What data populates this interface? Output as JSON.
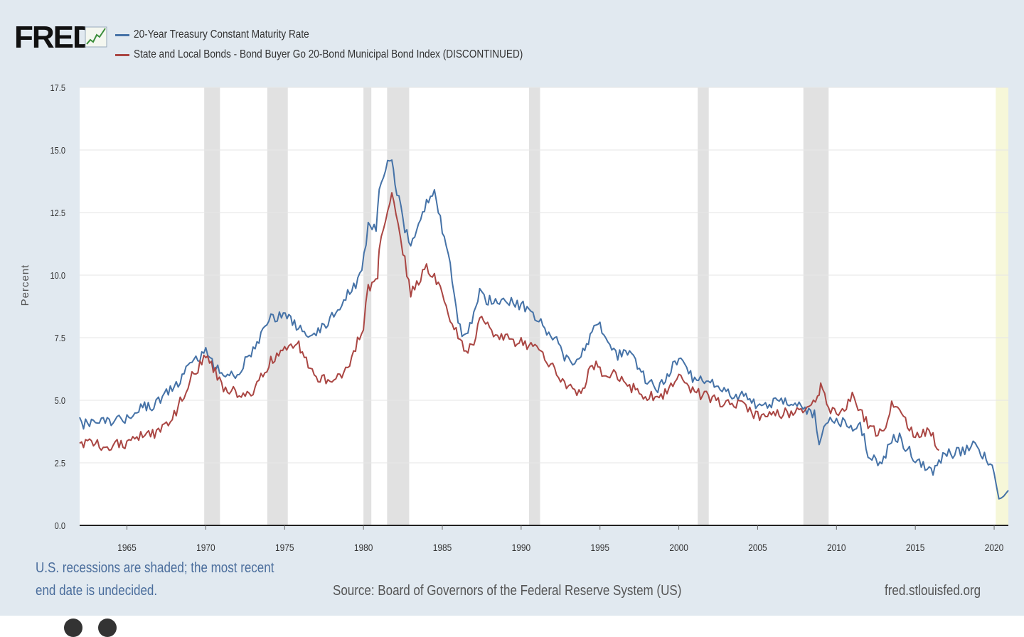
{
  "header": {
    "logo_text": "FRED",
    "logo_icon": "fred-graph-icon"
  },
  "legend": [
    {
      "label": "20-Year Treasury Constant Maturity Rate",
      "color": "#4572a7"
    },
    {
      "label": "State and Local Bonds - Bond Buyer Go 20-Bond Municipal Bond Index (DISCONTINUED)",
      "color": "#aa4643"
    }
  ],
  "footer": {
    "recession_note_line1": "U.S. recessions are shaded; the most recent",
    "recession_note_line2": "end date is undecided.",
    "source": "Source: Board of Governors of the Federal Reserve System (US)",
    "site": "fred.stlouisfed.org"
  },
  "chart_data": {
    "type": "line",
    "ylabel": "Percent",
    "xlim": [
      1962,
      2020.9
    ],
    "ylim": [
      0,
      17.5
    ],
    "x_ticks": [
      "1965",
      "1970",
      "1975",
      "1980",
      "1985",
      "1990",
      "1995",
      "2000",
      "2005",
      "2010",
      "2015",
      "2020"
    ],
    "y_ticks": [
      "0.0",
      "2.5",
      "5.0",
      "7.5",
      "10.0",
      "12.5",
      "15.0",
      "17.5"
    ],
    "recessions": [
      [
        1969.9,
        1970.9
      ],
      [
        1973.9,
        1975.2
      ],
      [
        1980.0,
        1980.5
      ],
      [
        1981.5,
        1982.9
      ],
      [
        1990.5,
        1991.2
      ],
      [
        2001.2,
        2001.9
      ],
      [
        2007.9,
        2009.5
      ],
      [
        2020.1,
        2020.9
      ]
    ],
    "series": [
      {
        "name": "20-Year Treasury Constant Maturity Rate",
        "color": "#4572a7",
        "x": [
          1962.0,
          1963.0,
          1964.0,
          1965.0,
          1966.0,
          1966.7,
          1967.0,
          1968.0,
          1969.0,
          1970.0,
          1970.4,
          1971.0,
          1972.0,
          1973.0,
          1974.0,
          1974.8,
          1975.5,
          1976.0,
          1977.0,
          1978.0,
          1979.0,
          1979.9,
          1980.3,
          1980.8,
          1981.0,
          1981.8,
          1982.0,
          1982.5,
          1983.0,
          1983.5,
          1984.0,
          1984.5,
          1985.0,
          1985.5,
          1986.0,
          1986.5,
          1987.0,
          1987.5,
          1987.8,
          1988.0,
          1989.0,
          1990.0,
          1990.5,
          1991.0,
          1992.0,
          1993.0,
          1993.8,
          1994.5,
          1995.0,
          1996.0,
          1997.0,
          1998.0,
          1998.8,
          1999.5,
          2000.0,
          2001.0,
          2002.0,
          2003.0,
          2004.0,
          2005.0,
          2006.0,
          2007.0,
          2008.0,
          2008.6,
          2008.9,
          2009.2,
          2010.0,
          2010.8,
          2011.5,
          2012.0,
          2012.5,
          2013.0,
          2013.5,
          2014.0,
          2015.0,
          2016.0,
          2016.5,
          2017.0,
          2018.0,
          2018.8,
          2019.5,
          2020.0,
          2020.3,
          2020.6,
          2020.9
        ],
        "y": [
          4.1,
          4.0,
          4.2,
          4.3,
          4.8,
          4.6,
          5.0,
          5.5,
          6.4,
          7.0,
          6.5,
          6.0,
          6.1,
          7.0,
          8.3,
          8.4,
          8.1,
          7.8,
          7.6,
          8.4,
          9.2,
          10.0,
          12.1,
          11.8,
          13.5,
          14.8,
          13.8,
          12.2,
          11.0,
          12.0,
          12.9,
          13.5,
          11.8,
          10.5,
          8.0,
          7.5,
          8.5,
          9.5,
          8.8,
          9.0,
          9.0,
          8.8,
          8.6,
          8.2,
          7.6,
          6.5,
          6.8,
          7.7,
          8.0,
          6.8,
          6.9,
          5.7,
          5.5,
          6.3,
          6.7,
          5.8,
          5.8,
          5.3,
          5.2,
          4.8,
          4.9,
          5.0,
          4.6,
          4.5,
          3.2,
          4.0,
          4.3,
          3.9,
          4.0,
          2.9,
          2.5,
          2.6,
          3.5,
          3.5,
          2.6,
          2.1,
          2.5,
          2.9,
          2.9,
          3.2,
          2.7,
          2.3,
          1.2,
          1.2,
          1.4
        ]
      },
      {
        "name": "State and Local Bonds - Bond Buyer Go 20-Bond Municipal Bond Index (DISCONTINUED)",
        "color": "#aa4643",
        "x": [
          1962.0,
          1963.0,
          1964.0,
          1965.0,
          1966.0,
          1967.0,
          1968.0,
          1969.0,
          1970.0,
          1970.6,
          1971.0,
          1972.0,
          1973.0,
          1974.0,
          1975.0,
          1975.8,
          1976.0,
          1977.0,
          1978.0,
          1979.0,
          1980.0,
          1980.3,
          1980.9,
          1981.0,
          1981.8,
          1982.2,
          1982.5,
          1983.0,
          1984.0,
          1984.5,
          1985.0,
          1986.0,
          1986.5,
          1987.0,
          1987.5,
          1988.0,
          1989.0,
          1990.0,
          1991.0,
          1992.0,
          1993.0,
          1993.8,
          1994.5,
          1995.0,
          1996.0,
          1997.0,
          1998.0,
          1999.0,
          2000.0,
          2001.0,
          2002.0,
          2003.0,
          2004.0,
          2005.0,
          2006.0,
          2007.0,
          2008.0,
          2008.8,
          2009.0,
          2009.5,
          2010.0,
          2010.5,
          2011.0,
          2012.0,
          2012.5,
          2013.0,
          2013.5,
          2014.0,
          2015.0,
          2016.0,
          2016.5
        ],
        "y": [
          3.3,
          3.2,
          3.2,
          3.3,
          3.7,
          3.7,
          4.4,
          5.8,
          6.8,
          6.2,
          5.5,
          5.3,
          5.2,
          6.5,
          7.0,
          7.4,
          7.0,
          5.8,
          5.8,
          6.3,
          8.0,
          9.5,
          10.0,
          11.0,
          13.3,
          12.0,
          11.0,
          9.2,
          10.3,
          10.0,
          9.2,
          7.5,
          7.0,
          7.4,
          8.3,
          7.8,
          7.5,
          7.3,
          7.0,
          6.4,
          5.5,
          5.3,
          6.5,
          6.2,
          6.0,
          5.5,
          5.1,
          5.2,
          6.0,
          5.3,
          5.1,
          4.8,
          4.8,
          4.4,
          4.4,
          4.5,
          4.6,
          5.0,
          5.8,
          4.6,
          4.4,
          4.6,
          5.1,
          4.1,
          3.7,
          3.6,
          5.0,
          4.6,
          3.6,
          3.7,
          3.0
        ]
      }
    ]
  }
}
